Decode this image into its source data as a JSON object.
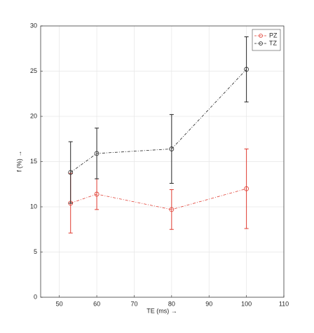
{
  "chart_data": {
    "type": "line",
    "x_label": "TE (ms) →",
    "y_label": "f (%) →",
    "x": [
      53,
      60,
      80,
      100
    ],
    "series": [
      {
        "name": "PZ",
        "color": "#e03c31",
        "values": [
          10.4,
          11.4,
          9.7,
          12.0
        ],
        "errors": [
          3.3,
          1.7,
          2.2,
          4.4
        ]
      },
      {
        "name": "TZ",
        "color": "#262626",
        "values": [
          13.8,
          15.9,
          16.4,
          25.2
        ],
        "errors": [
          3.4,
          2.8,
          3.8,
          3.6
        ]
      }
    ],
    "xlim": [
      45,
      110
    ],
    "xticks": [
      50,
      60,
      70,
      80,
      90,
      100,
      110
    ],
    "ylim": [
      0,
      30
    ],
    "yticks": [
      0,
      5,
      10,
      15,
      20,
      25,
      30
    ],
    "grid": true,
    "legend": "northeast"
  }
}
